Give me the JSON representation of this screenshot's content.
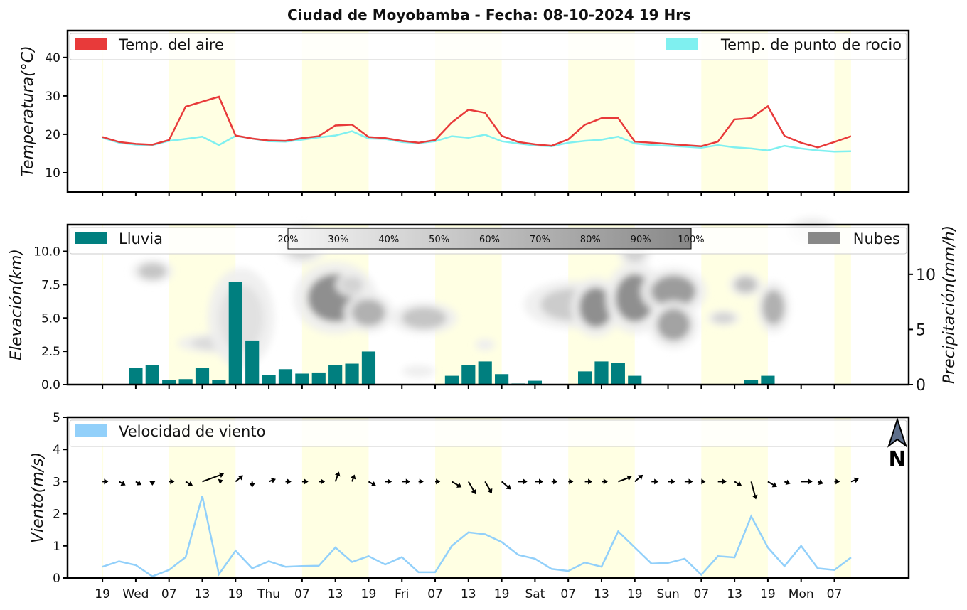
{
  "title": "Ciudad de Moyobamba   -   Fecha: 08-10-2024 19 Hrs",
  "x_axis": {
    "tick_labels": [
      "19",
      "Wed",
      "07",
      "13",
      "19",
      "Thu",
      "07",
      "13",
      "19",
      "Fri",
      "07",
      "13",
      "19",
      "Sat",
      "07",
      "13",
      "19",
      "Sun",
      "07",
      "13",
      "19",
      "Mon",
      "07"
    ]
  },
  "day_bands_hours": [
    [
      12,
      24
    ],
    [
      36,
      48
    ],
    [
      60,
      72
    ],
    [
      84,
      96
    ],
    [
      108,
      120
    ],
    [
      132,
      135
    ]
  ],
  "temperature_panel": {
    "ylabel": "Temperatura(°C)",
    "ylim": [
      5,
      47
    ],
    "yticks": [
      10,
      20,
      30,
      40
    ],
    "legend": {
      "air": "Temp. del aire",
      "dew": "Temp. de punto de rocio"
    },
    "colors": {
      "air": "#e83a3a",
      "dew": "#7ff0f0"
    }
  },
  "rain_panel": {
    "ylabel_left": "Elevación(km)",
    "ylabel_right": "Precipitación(mm/h)",
    "ylim_left": [
      0,
      12
    ],
    "yticks_left": [
      "0.0",
      "2.5",
      "5.0",
      "7.5",
      "10.0"
    ],
    "ylim_right": [
      0,
      14.5
    ],
    "yticks_right": [
      0,
      5,
      10
    ],
    "legend": {
      "rain": "Lluvia",
      "clouds": "Nubes"
    },
    "colorbar_labels": [
      "20%",
      "30%",
      "40%",
      "50%",
      "60%",
      "70%",
      "80%",
      "90%",
      "100%"
    ],
    "colors": {
      "rain": "#007f7f",
      "clouds": "#888888"
    }
  },
  "wind_panel": {
    "ylabel": "Viento(m/s)",
    "ylim": [
      0,
      5
    ],
    "yticks": [
      0,
      1,
      2,
      3,
      4,
      5
    ],
    "legend": {
      "speed": "Velocidad de viento"
    },
    "north_label": "N",
    "colors": {
      "speed": "#92d0fa"
    }
  },
  "chart_data": [
    {
      "type": "line",
      "title": "Temperatura",
      "x_hours": [
        0,
        3,
        6,
        9,
        12,
        15,
        18,
        21,
        24,
        27,
        30,
        33,
        36,
        39,
        42,
        45,
        48,
        51,
        54,
        57,
        60,
        63,
        66,
        69,
        72,
        75,
        78,
        81,
        84,
        87,
        90,
        93,
        96,
        99,
        102,
        105,
        108,
        111,
        114,
        117,
        120,
        123,
        126,
        129,
        132,
        135
      ],
      "series": [
        {
          "name": "Temp. del aire",
          "values": [
            19.3,
            18.0,
            17.5,
            17.3,
            18.5,
            27.2,
            28.5,
            29.8,
            19.7,
            18.9,
            18.4,
            18.3,
            19.0,
            19.5,
            22.3,
            22.5,
            19.3,
            19.0,
            18.3,
            17.8,
            18.5,
            23.1,
            26.4,
            25.6,
            19.6,
            18.0,
            17.4,
            17.0,
            18.7,
            22.5,
            24.2,
            24.2,
            18.1,
            17.8,
            17.5,
            17.2,
            16.9,
            18.1,
            23.9,
            24.2,
            27.3,
            19.6,
            17.8,
            16.6,
            18.0,
            19.5
          ]
        },
        {
          "name": "Temp. de punto de rocio",
          "values": [
            19.1,
            17.8,
            17.3,
            17.2,
            18.3,
            18.8,
            19.4,
            17.2,
            19.6,
            18.9,
            18.2,
            18.1,
            18.6,
            19.2,
            19.7,
            20.8,
            18.9,
            18.8,
            18.0,
            17.7,
            18.2,
            19.5,
            19.1,
            19.9,
            18.2,
            17.6,
            17.1,
            16.9,
            17.8,
            18.3,
            18.6,
            19.4,
            17.6,
            17.2,
            17.0,
            16.8,
            16.5,
            17.2,
            16.6,
            16.3,
            15.8,
            17.0,
            16.3,
            15.8,
            15.5,
            15.6
          ]
        }
      ],
      "xlabel": "",
      "ylabel": "Temperatura(°C)",
      "ylim": [
        5,
        47
      ]
    },
    {
      "type": "bar",
      "title": "Lluvia",
      "x_hours": [
        0,
        3,
        6,
        9,
        12,
        15,
        18,
        21,
        24,
        27,
        30,
        33,
        36,
        39,
        42,
        45,
        48,
        51,
        54,
        57,
        60,
        63,
        66,
        69,
        72,
        75,
        78,
        81,
        84,
        87,
        90,
        93,
        96,
        99,
        102,
        105,
        108,
        111,
        114,
        117,
        120,
        123,
        126,
        129,
        132,
        135
      ],
      "values": [
        0,
        0,
        1.5,
        1.8,
        0.45,
        0.5,
        1.5,
        0.45,
        9.3,
        4.0,
        0.9,
        1.4,
        1.0,
        1.1,
        1.8,
        1.9,
        3.0,
        0,
        0,
        0,
        0,
        0.8,
        1.8,
        2.1,
        0.95,
        0.1,
        0.35,
        0,
        0,
        1.2,
        2.1,
        1.95,
        0.8,
        0.05,
        0,
        0,
        0,
        0,
        0,
        0.45,
        0.8,
        0.05,
        0,
        0,
        0,
        0
      ],
      "ylabel": "Precipitación(mm/h)",
      "ylim": [
        0,
        14.5
      ]
    },
    {
      "type": "heatmap",
      "title": "Nubes",
      "description_unit": "cloud cover %",
      "blobs": [
        {
          "hour": 9,
          "km": 8.5,
          "cover": 55,
          "spread_h": 2.5,
          "spread_km": 0.6
        },
        {
          "hour": 21,
          "km": 3.1,
          "cover": 40,
          "spread_h": 5,
          "spread_km": 0.5
        },
        {
          "hour": 25,
          "km": 5.0,
          "cover": 35,
          "spread_h": 4,
          "spread_km": 2.5
        },
        {
          "hour": 36,
          "km": 10.5,
          "cover": 45,
          "spread_h": 3,
          "spread_km": 1.0
        },
        {
          "hour": 42,
          "km": 6.5,
          "cover": 95,
          "spread_h": 5,
          "spread_km": 1.8
        },
        {
          "hour": 45,
          "km": 7.5,
          "cover": 45,
          "spread_h": 2,
          "spread_km": 0.6
        },
        {
          "hour": 48,
          "km": 5.4,
          "cover": 70,
          "spread_h": 3,
          "spread_km": 1.0
        },
        {
          "hour": 58,
          "km": 5.0,
          "cover": 55,
          "spread_h": 4,
          "spread_km": 0.8
        },
        {
          "hour": 57,
          "km": 1.0,
          "cover": 25,
          "spread_h": 2,
          "spread_km": 0.3
        },
        {
          "hour": 69,
          "km": 3.0,
          "cover": 25,
          "spread_h": 1.2,
          "spread_km": 0.3
        },
        {
          "hour": 85,
          "km": 6.0,
          "cover": 50,
          "spread_h": 6,
          "spread_km": 1.2
        },
        {
          "hour": 89,
          "km": 5.8,
          "cover": 95,
          "spread_h": 3,
          "spread_km": 1.5
        },
        {
          "hour": 96,
          "km": 6.5,
          "cover": 95,
          "spread_h": 3.5,
          "spread_km": 1.8
        },
        {
          "hour": 96,
          "km": 10.0,
          "cover": 45,
          "spread_h": 2,
          "spread_km": 0.8
        },
        {
          "hour": 103,
          "km": 7.0,
          "cover": 85,
          "spread_h": 4,
          "spread_km": 1.2
        },
        {
          "hour": 103,
          "km": 4.5,
          "cover": 80,
          "spread_h": 3,
          "spread_km": 1.2
        },
        {
          "hour": 112,
          "km": 5.0,
          "cover": 45,
          "spread_h": 2,
          "spread_km": 0.4
        },
        {
          "hour": 116,
          "km": 7.5,
          "cover": 60,
          "spread_h": 2,
          "spread_km": 0.6
        },
        {
          "hour": 121,
          "km": 5.8,
          "cover": 70,
          "spread_h": 2,
          "spread_km": 1.3
        },
        {
          "hour": 128,
          "km": 11.5,
          "cover": 30,
          "spread_h": 3,
          "spread_km": 0.7
        }
      ],
      "ylabel": "Elevación(km)",
      "ylim": [
        0,
        12
      ]
    },
    {
      "type": "line",
      "title": "Velocidad de viento",
      "x_hours": [
        0,
        3,
        6,
        9,
        12,
        15,
        18,
        21,
        24,
        27,
        30,
        33,
        36,
        39,
        42,
        45,
        48,
        51,
        54,
        57,
        60,
        63,
        66,
        69,
        72,
        75,
        78,
        81,
        84,
        87,
        90,
        93,
        96,
        99,
        102,
        105,
        108,
        111,
        114,
        117,
        120,
        123,
        126,
        129,
        132,
        135
      ],
      "series": [
        {
          "name": "Velocidad de viento",
          "values": [
            0.35,
            0.52,
            0.4,
            0.05,
            0.25,
            0.65,
            2.55,
            0.12,
            0.85,
            0.3,
            0.52,
            0.35,
            0.37,
            0.38,
            0.95,
            0.5,
            0.68,
            0.42,
            0.65,
            0.18,
            0.18,
            1.0,
            1.42,
            1.36,
            1.12,
            0.72,
            0.6,
            0.28,
            0.22,
            0.48,
            0.35,
            1.45,
            0.95,
            0.45,
            0.47,
            0.6,
            0.1,
            0.68,
            0.64,
            1.92,
            0.95,
            0.37,
            1.0,
            0.3,
            0.25,
            0.64
          ]
        }
      ],
      "wind_arrow_deg": [
        270,
        300,
        300,
        0,
        270,
        300,
        250,
        250,
        230,
        0,
        250,
        270,
        270,
        270,
        200,
        200,
        300,
        270,
        270,
        270,
        270,
        300,
        330,
        330,
        310,
        270,
        270,
        270,
        270,
        270,
        270,
        250,
        230,
        270,
        270,
        270,
        270,
        270,
        300,
        345,
        300,
        290,
        270,
        290,
        270,
        250
      ],
      "wind_arrow_len": [
        0.3,
        0.5,
        0.4,
        0.05,
        0.25,
        0.6,
        2.5,
        0.1,
        0.8,
        0.3,
        0.5,
        0.3,
        0.35,
        0.35,
        0.9,
        0.5,
        0.65,
        0.4,
        0.6,
        0.2,
        0.2,
        1.0,
        1.4,
        1.3,
        1.1,
        0.7,
        0.6,
        0.3,
        0.2,
        0.5,
        0.35,
        1.4,
        0.9,
        0.45,
        0.45,
        0.6,
        0.1,
        0.65,
        0.6,
        1.9,
        0.9,
        0.35,
        1.0,
        0.3,
        0.25,
        0.6
      ],
      "ylabel": "Viento(m/s)",
      "ylim": [
        0,
        5
      ]
    }
  ]
}
